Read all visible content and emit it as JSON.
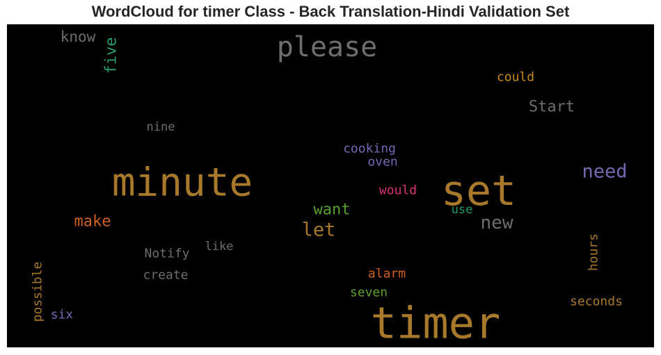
{
  "chart_data": {
    "type": "wordcloud",
    "title": "WordCloud for timer Class - Back Translation-Hindi Validation Set",
    "background": "#000000",
    "words": [
      {
        "text": "please",
        "color": "#6e6e6e",
        "orientation": "horizontal"
      },
      {
        "text": "know",
        "color": "#6e6e6e",
        "orientation": "horizontal"
      },
      {
        "text": "five",
        "color": "#2a9d6e",
        "orientation": "vertical"
      },
      {
        "text": "could",
        "color": "#c48a1c",
        "orientation": "horizontal"
      },
      {
        "text": "Start",
        "color": "#6e6e6e",
        "orientation": "horizontal"
      },
      {
        "text": "nine",
        "color": "#6e6e6e",
        "orientation": "horizontal"
      },
      {
        "text": "cooking",
        "color": "#7468b0",
        "orientation": "horizontal"
      },
      {
        "text": "oven",
        "color": "#7468b0",
        "orientation": "horizontal"
      },
      {
        "text": "minute",
        "color": "#a8792a",
        "orientation": "horizontal"
      },
      {
        "text": "set",
        "color": "#a8792a",
        "orientation": "horizontal"
      },
      {
        "text": "need",
        "color": "#7468b0",
        "orientation": "horizontal"
      },
      {
        "text": "would",
        "color": "#d8307a",
        "orientation": "horizontal"
      },
      {
        "text": "want",
        "color": "#5a9f2a",
        "orientation": "horizontal"
      },
      {
        "text": "use",
        "color": "#1e9870",
        "orientation": "horizontal"
      },
      {
        "text": "make",
        "color": "#d06020",
        "orientation": "horizontal"
      },
      {
        "text": "let",
        "color": "#a8792a",
        "orientation": "horizontal"
      },
      {
        "text": "new",
        "color": "#6e6e6e",
        "orientation": "horizontal"
      },
      {
        "text": "Notify",
        "color": "#6e6e6e",
        "orientation": "horizontal"
      },
      {
        "text": "like",
        "color": "#6e6e6e",
        "orientation": "horizontal"
      },
      {
        "text": "hours",
        "color": "#a8792a",
        "orientation": "vertical"
      },
      {
        "text": "create",
        "color": "#6e6e6e",
        "orientation": "horizontal"
      },
      {
        "text": "alarm",
        "color": "#d06020",
        "orientation": "horizontal"
      },
      {
        "text": "possible",
        "color": "#a8792a",
        "orientation": "vertical"
      },
      {
        "text": "seven",
        "color": "#5a9f2a",
        "orientation": "horizontal"
      },
      {
        "text": "seconds",
        "color": "#a8792a",
        "orientation": "horizontal"
      },
      {
        "text": "six",
        "color": "#7468b0",
        "orientation": "horizontal"
      },
      {
        "text": "timer",
        "color": "#a8792a",
        "orientation": "horizontal"
      }
    ]
  }
}
